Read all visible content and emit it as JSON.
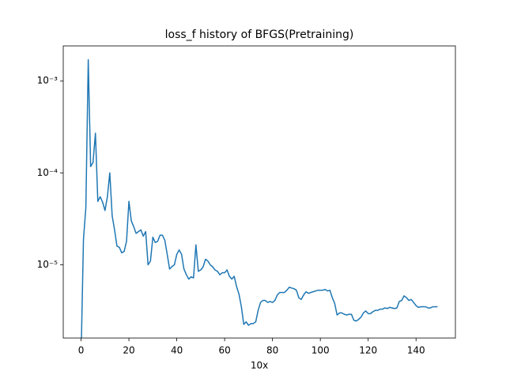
{
  "chart_data": {
    "type": "line",
    "title": "loss_f history of BFGS(Pretraining)",
    "x_label": "10x",
    "x": [
      0,
      1,
      2,
      3,
      4,
      5,
      6,
      7,
      8,
      9,
      10,
      11,
      12,
      13,
      14,
      15,
      16,
      17,
      18,
      19,
      20,
      21,
      22,
      23,
      24,
      25,
      26,
      27,
      28,
      29,
      30,
      31,
      32,
      33,
      34,
      35,
      36,
      37,
      38,
      39,
      40,
      41,
      42,
      43,
      44,
      45,
      46,
      47,
      48,
      49,
      50,
      51,
      52,
      53,
      54,
      55,
      56,
      57,
      58,
      59,
      60,
      61,
      62,
      63,
      64,
      65,
      66,
      67,
      68,
      69,
      70,
      71,
      72,
      73,
      74,
      75,
      76,
      77,
      78,
      79,
      80,
      81,
      82,
      83,
      84,
      85,
      86,
      87,
      88,
      89,
      90,
      91,
      92,
      93,
      94,
      95,
      96,
      97,
      98,
      99,
      100,
      101,
      102,
      103,
      104,
      105,
      106,
      107,
      108,
      109,
      110,
      111,
      112,
      113,
      114,
      115,
      116,
      117,
      118,
      119,
      120,
      121,
      122,
      123,
      124,
      125,
      126,
      127,
      128,
      129,
      130,
      131,
      132,
      133,
      134,
      135,
      136,
      137,
      138,
      139,
      140,
      141,
      142,
      143,
      144,
      145,
      146,
      147,
      148,
      149
    ],
    "values": [
      1e-06,
      1.9e-05,
      4.2e-05,
      0.0017,
      0.000117,
      0.00013,
      0.00027,
      4.9e-05,
      5.5e-05,
      4.8e-05,
      3.9e-05,
      5.5e-05,
      0.0001,
      3.4e-05,
      2.4e-05,
      1.6e-05,
      1.55e-05,
      1.35e-05,
      1.4e-05,
      1.8e-05,
      4.9e-05,
      3e-05,
      2.6e-05,
      2.2e-05,
      2.3e-05,
      2.4e-05,
      2.05e-05,
      2.3e-05,
      1e-05,
      1.1e-05,
      2e-05,
      1.75e-05,
      1.8e-05,
      2.1e-05,
      2.1e-05,
      1.85e-05,
      1.3e-05,
      9e-06,
      9.6e-06,
      1e-05,
      1.3e-05,
      1.45e-05,
      1.3e-05,
      9e-06,
      7.8e-06,
      7e-06,
      7.4e-06,
      7.2e-06,
      1.65e-05,
      8.5e-06,
      8.8e-06,
      9.5e-06,
      1.15e-05,
      1.1e-05,
      1e-05,
      9.5e-06,
      8.8e-06,
      8.5e-06,
      7.8e-06,
      8.2e-06,
      8.2e-06,
      8.8e-06,
      7.5e-06,
      7e-06,
      7.5e-06,
      5.8e-06,
      4.8e-06,
      3.5e-06,
      2.25e-06,
      2.4e-06,
      2.2e-06,
      2.3e-06,
      2.3e-06,
      2.4e-06,
      3.2e-06,
      3.9e-06,
      4.1e-06,
      4.1e-06,
      3.9e-06,
      4e-06,
      3.9e-06,
      4.1e-06,
      4.7e-06,
      5e-06,
      5e-06,
      5e-06,
      5.3e-06,
      5.7e-06,
      5.6e-06,
      5.5e-06,
      5.3e-06,
      4.4e-06,
      4.2e-06,
      4.7e-06,
      5.1e-06,
      4.9e-06,
      5e-06,
      5.1e-06,
      5.2e-06,
      5.3e-06,
      5.3e-06,
      5.3e-06,
      5.4e-06,
      5.2e-06,
      5.3e-06,
      4.4e-06,
      3.8e-06,
      2.85e-06,
      3e-06,
      3e-06,
      2.9e-06,
      2.85e-06,
      2.9e-06,
      2.9e-06,
      2.5e-06,
      2.45e-06,
      2.55e-06,
      2.7e-06,
      3e-06,
      3.15e-06,
      2.95e-06,
      2.95e-06,
      3.1e-06,
      3.2e-06,
      3.2e-06,
      3.3e-06,
      3.3e-06,
      3.4e-06,
      3.35e-06,
      3.45e-06,
      3.4e-06,
      3.35e-06,
      3.4e-06,
      4e-06,
      4.1e-06,
      4.6e-06,
      4.4e-06,
      4.1e-06,
      4.2e-06,
      3.9e-06,
      3.6e-06,
      3.45e-06,
      3.5e-06,
      3.5e-06,
      3.5e-06,
      3.4e-06,
      3.4e-06,
      3.5e-06,
      3.5e-06,
      3.5e-06
    ],
    "color": "#1f77b4",
    "xlim": [
      -7.45,
      156.45
    ],
    "xticks": [
      0,
      20,
      40,
      60,
      80,
      100,
      120,
      140
    ],
    "ylim": [
      1.6e-06,
      0.0024
    ],
    "y_scale": "log",
    "yticks": [
      {
        "value": 0.001,
        "label": "10⁻³"
      },
      {
        "value": 0.0001,
        "label": "10⁻⁴"
      },
      {
        "value": 1e-05,
        "label": "10⁻⁵"
      }
    ],
    "grid": false
  }
}
